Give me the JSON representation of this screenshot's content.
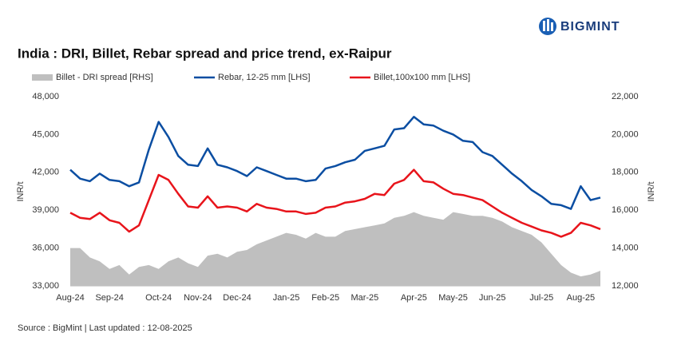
{
  "logo": "BIGMINT",
  "source": "Source : BigMint | Last updated : 12-08-2025",
  "chart_data": {
    "type": "line",
    "title": "India : DRI, Billet, Rebar spread and price trend, ex-Raipur",
    "ylabel": "INR/t",
    "y2label": "INR/t",
    "categories": [
      "Aug-24",
      null,
      null,
      null,
      "Sep-24",
      null,
      null,
      null,
      null,
      "Oct-24",
      null,
      null,
      null,
      "Nov-24",
      null,
      null,
      null,
      "Dec-24",
      null,
      null,
      null,
      null,
      "Jan-25",
      null,
      null,
      null,
      "Feb-25",
      null,
      null,
      null,
      "Mar-25",
      null,
      null,
      null,
      null,
      "Apr-25",
      null,
      null,
      null,
      "May-25",
      null,
      null,
      null,
      "Jun-25",
      null,
      null,
      null,
      null,
      "Jul-25",
      null,
      null,
      null,
      "Aug-25",
      null,
      null
    ],
    "series": [
      {
        "name": "Billet - DRI spread  [RHS]",
        "type": "area",
        "axis": "y2",
        "color": "#bfbfbf",
        "values": [
          14000,
          14000,
          13500,
          13300,
          12900,
          13100,
          12600,
          13000,
          13100,
          12900,
          13300,
          13500,
          13200,
          13000,
          13600,
          13700,
          13500,
          13800,
          13900,
          14200,
          14400,
          14600,
          14800,
          14700,
          14500,
          14800,
          14600,
          14600,
          14900,
          15000,
          15100,
          15200,
          15300,
          15600,
          15700,
          15900,
          15700,
          15600,
          15500,
          15900,
          15800,
          15700,
          15700,
          15600,
          15400,
          15100,
          14900,
          14700,
          14300,
          13700,
          13100,
          12700,
          12500,
          12600,
          12800
        ]
      },
      {
        "name": "Rebar, 12-25 mm [LHS]",
        "type": "line",
        "color": "#0b4ea2",
        "values": [
          42200,
          41500,
          41300,
          41900,
          41400,
          41300,
          40900,
          41200,
          43800,
          46000,
          44800,
          43300,
          42600,
          42500,
          43900,
          42600,
          42400,
          42100,
          41700,
          42400,
          42100,
          41800,
          41500,
          41500,
          41300,
          41400,
          42300,
          42500,
          42800,
          43000,
          43700,
          43900,
          44100,
          45400,
          45500,
          46400,
          45800,
          45700,
          45300,
          45000,
          44500,
          44400,
          43600,
          43300,
          42600,
          41900,
          41300,
          40600,
          40100,
          39500,
          39400,
          39100,
          40900,
          39800,
          40000
        ]
      },
      {
        "name": "Billet,100x100 mm [LHS]",
        "type": "line",
        "color": "#e8141b",
        "values": [
          38800,
          38400,
          38300,
          38800,
          38200,
          38000,
          37300,
          37800,
          39800,
          41800,
          41400,
          40300,
          39300,
          39200,
          40100,
          39200,
          39300,
          39200,
          38900,
          39500,
          39200,
          39100,
          38900,
          38900,
          38700,
          38800,
          39200,
          39300,
          39600,
          39700,
          39900,
          40300,
          40200,
          41100,
          41400,
          42200,
          41300,
          41200,
          40700,
          40300,
          40200,
          40000,
          39800,
          39300,
          38800,
          38400,
          38000,
          37700,
          37400,
          37200,
          36900,
          37200,
          38000,
          37800,
          37500
        ]
      }
    ],
    "ylim": [
      33000,
      48000
    ],
    "yticks": [
      {
        "value": 33000,
        "label": "33,000"
      },
      {
        "value": 36000,
        "label": "36,000"
      },
      {
        "value": 39000,
        "label": "39,000"
      },
      {
        "value": 42000,
        "label": "42,000"
      },
      {
        "value": 45000,
        "label": "45,000"
      },
      {
        "value": 48000,
        "label": "48,000"
      }
    ],
    "y2lim": [
      12000,
      22000
    ],
    "y2ticks": [
      {
        "value": 12000,
        "label": "12,000"
      },
      {
        "value": 14000,
        "label": "14,000"
      },
      {
        "value": 16000,
        "label": "16,000"
      },
      {
        "value": 18000,
        "label": "18,000"
      },
      {
        "value": 20000,
        "label": "20,000"
      },
      {
        "value": 22000,
        "label": "22,000"
      }
    ],
    "grid": false,
    "legend": "top"
  }
}
